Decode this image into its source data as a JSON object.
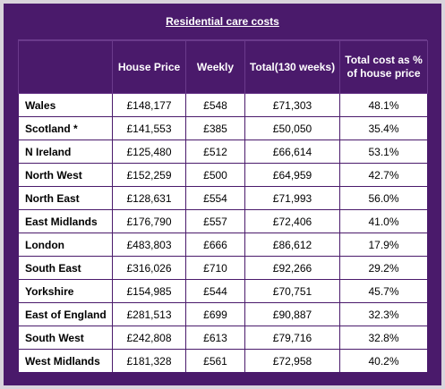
{
  "title": "Residential care costs",
  "headers": {
    "region": "",
    "house_price": "House Price",
    "weekly": "Weekly",
    "total": "Total(130 weeks)",
    "pct": "Total cost as % of house price"
  },
  "rows": [
    {
      "region": "Wales",
      "house_price": "£148,177",
      "weekly": "£548",
      "total": "£71,303",
      "pct": "48.1%"
    },
    {
      "region": "Scotland *",
      "house_price": "£141,553",
      "weekly": "£385",
      "total": "£50,050",
      "pct": "35.4%"
    },
    {
      "region": "N Ireland",
      "house_price": "£125,480",
      "weekly": "£512",
      "total": "£66,614",
      "pct": "53.1%"
    },
    {
      "region": "North West",
      "house_price": "£152,259",
      "weekly": "£500",
      "total": "£64,959",
      "pct": "42.7%"
    },
    {
      "region": "North East",
      "house_price": "£128,631",
      "weekly": "£554",
      "total": "£71,993",
      "pct": "56.0%"
    },
    {
      "region": "East Midlands",
      "house_price": "£176,790",
      "weekly": "£557",
      "total": "£72,406",
      "pct": "41.0%"
    },
    {
      "region": "London",
      "house_price": "£483,803",
      "weekly": "£666",
      "total": "£86,612",
      "pct": "17.9%"
    },
    {
      "region": "South East",
      "house_price": "£316,026",
      "weekly": "£710",
      "total": "£92,266",
      "pct": "29.2%"
    },
    {
      "region": "Yorkshire",
      "house_price": "£154,985",
      "weekly": "£544",
      "total": "£70,751",
      "pct": "45.7%"
    },
    {
      "region": "East of England",
      "house_price": "£281,513",
      "weekly": "£699",
      "total": "£90,887",
      "pct": "32.3%"
    },
    {
      "region": "South West",
      "house_price": "£242,808",
      "weekly": "£613",
      "total": "£79,716",
      "pct": "32.8%"
    },
    {
      "region": "West Midlands",
      "house_price": "£181,328",
      "weekly": "£561",
      "total": "£72,958",
      "pct": "40.2%"
    }
  ]
}
